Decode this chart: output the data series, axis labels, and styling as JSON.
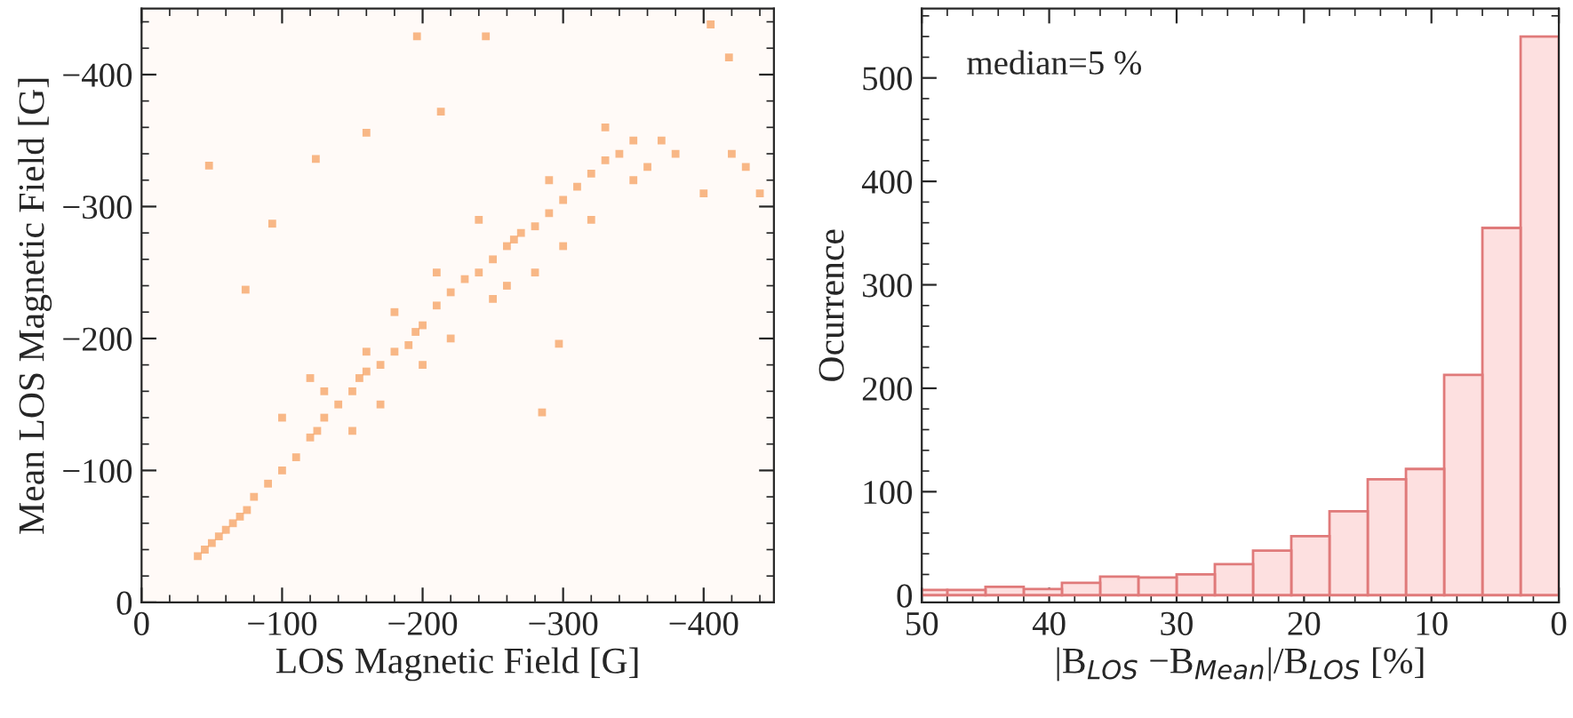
{
  "chart_data": [
    {
      "type": "scatter",
      "xlabel": "LOS Magnetic Field [G]",
      "ylabel": "Mean LOS Magnetic Field [G]",
      "xlim": [
        0,
        -450
      ],
      "ylim": [
        0,
        -450
      ],
      "xticks": [
        0,
        {
          "value": -100,
          "label": "−100"
        },
        {
          "value": -200,
          "label": "−200"
        },
        {
          "value": -300,
          "label": "−300"
        },
        {
          "value": -400,
          "label": "−400"
        }
      ],
      "yticks": [
        0,
        {
          "value": -100,
          "label": "−100"
        },
        {
          "value": -200,
          "label": "−200"
        },
        {
          "value": -300,
          "label": "−300"
        },
        {
          "value": -400,
          "label": "−400"
        }
      ],
      "grid": false,
      "marker": "square",
      "series": [
        {
          "color": "#f59a55",
          "x": [
            -40,
            -45,
            -50,
            -55,
            -60,
            -65,
            -70,
            -75,
            -80,
            -90,
            -100,
            -110,
            -120,
            -125,
            -130,
            -140,
            -150,
            -155,
            -160,
            -170,
            -180,
            -190,
            -195,
            -200,
            -210,
            -220,
            -230,
            -240,
            -250,
            -260,
            -265,
            -270,
            -280,
            -290,
            -300,
            -310,
            -320,
            -330,
            -340,
            -350,
            -100,
            -120,
            -130,
            -150,
            -160,
            -170,
            -180,
            -200,
            -210,
            -220,
            -240,
            -250,
            -260,
            -280,
            -290,
            -300,
            -320,
            -330,
            -350,
            -360,
            -370,
            -380,
            -400,
            -420,
            -430,
            -440,
            -48,
            -93,
            -74,
            -285,
            -213,
            -196,
            -245,
            -124,
            -160,
            -405,
            -418,
            -297
          ],
          "values": [
            -35,
            -40,
            -45,
            -50,
            -55,
            -60,
            -65,
            -70,
            -80,
            -90,
            -100,
            -110,
            -125,
            -130,
            -140,
            -150,
            -160,
            -170,
            -175,
            -180,
            -190,
            -195,
            -205,
            -210,
            -225,
            -235,
            -245,
            -250,
            -260,
            -270,
            -275,
            -280,
            -285,
            -295,
            -305,
            -315,
            -325,
            -335,
            -340,
            -350,
            -140,
            -170,
            -160,
            -130,
            -190,
            -150,
            -220,
            -180,
            -250,
            -200,
            -290,
            -230,
            -240,
            -250,
            -320,
            -270,
            -290,
            -360,
            -320,
            -330,
            -350,
            -340,
            -310,
            -340,
            -330,
            -310,
            -331,
            -287,
            -237,
            -144,
            -372,
            -429,
            -429,
            -336,
            -356,
            -438,
            -413,
            -196
          ]
        }
      ]
    },
    {
      "type": "histogram",
      "ylabel": "Ocurrence",
      "xlabel": "|B$_{LOS}$ −B$_{Mean}$|/B$_{LOS}$ [%]",
      "annotations": [
        "median=5 %"
      ],
      "bins": [
        0,
        3,
        6,
        9,
        12,
        15,
        18,
        21,
        24,
        27,
        30,
        33,
        36,
        39,
        42,
        45,
        48,
        50
      ],
      "values": [
        540,
        355,
        213,
        122,
        112,
        81,
        57,
        43,
        30,
        20,
        17,
        18,
        12,
        6,
        8,
        5,
        5
      ],
      "color": "#fde0e0",
      "xlim": [
        50,
        0
      ],
      "ylim": [
        -7,
        567
      ],
      "xticks": [
        50,
        40,
        30,
        20,
        10,
        0
      ],
      "yticks": [
        0,
        100,
        200,
        300,
        400,
        500
      ],
      "grid": false
    }
  ]
}
